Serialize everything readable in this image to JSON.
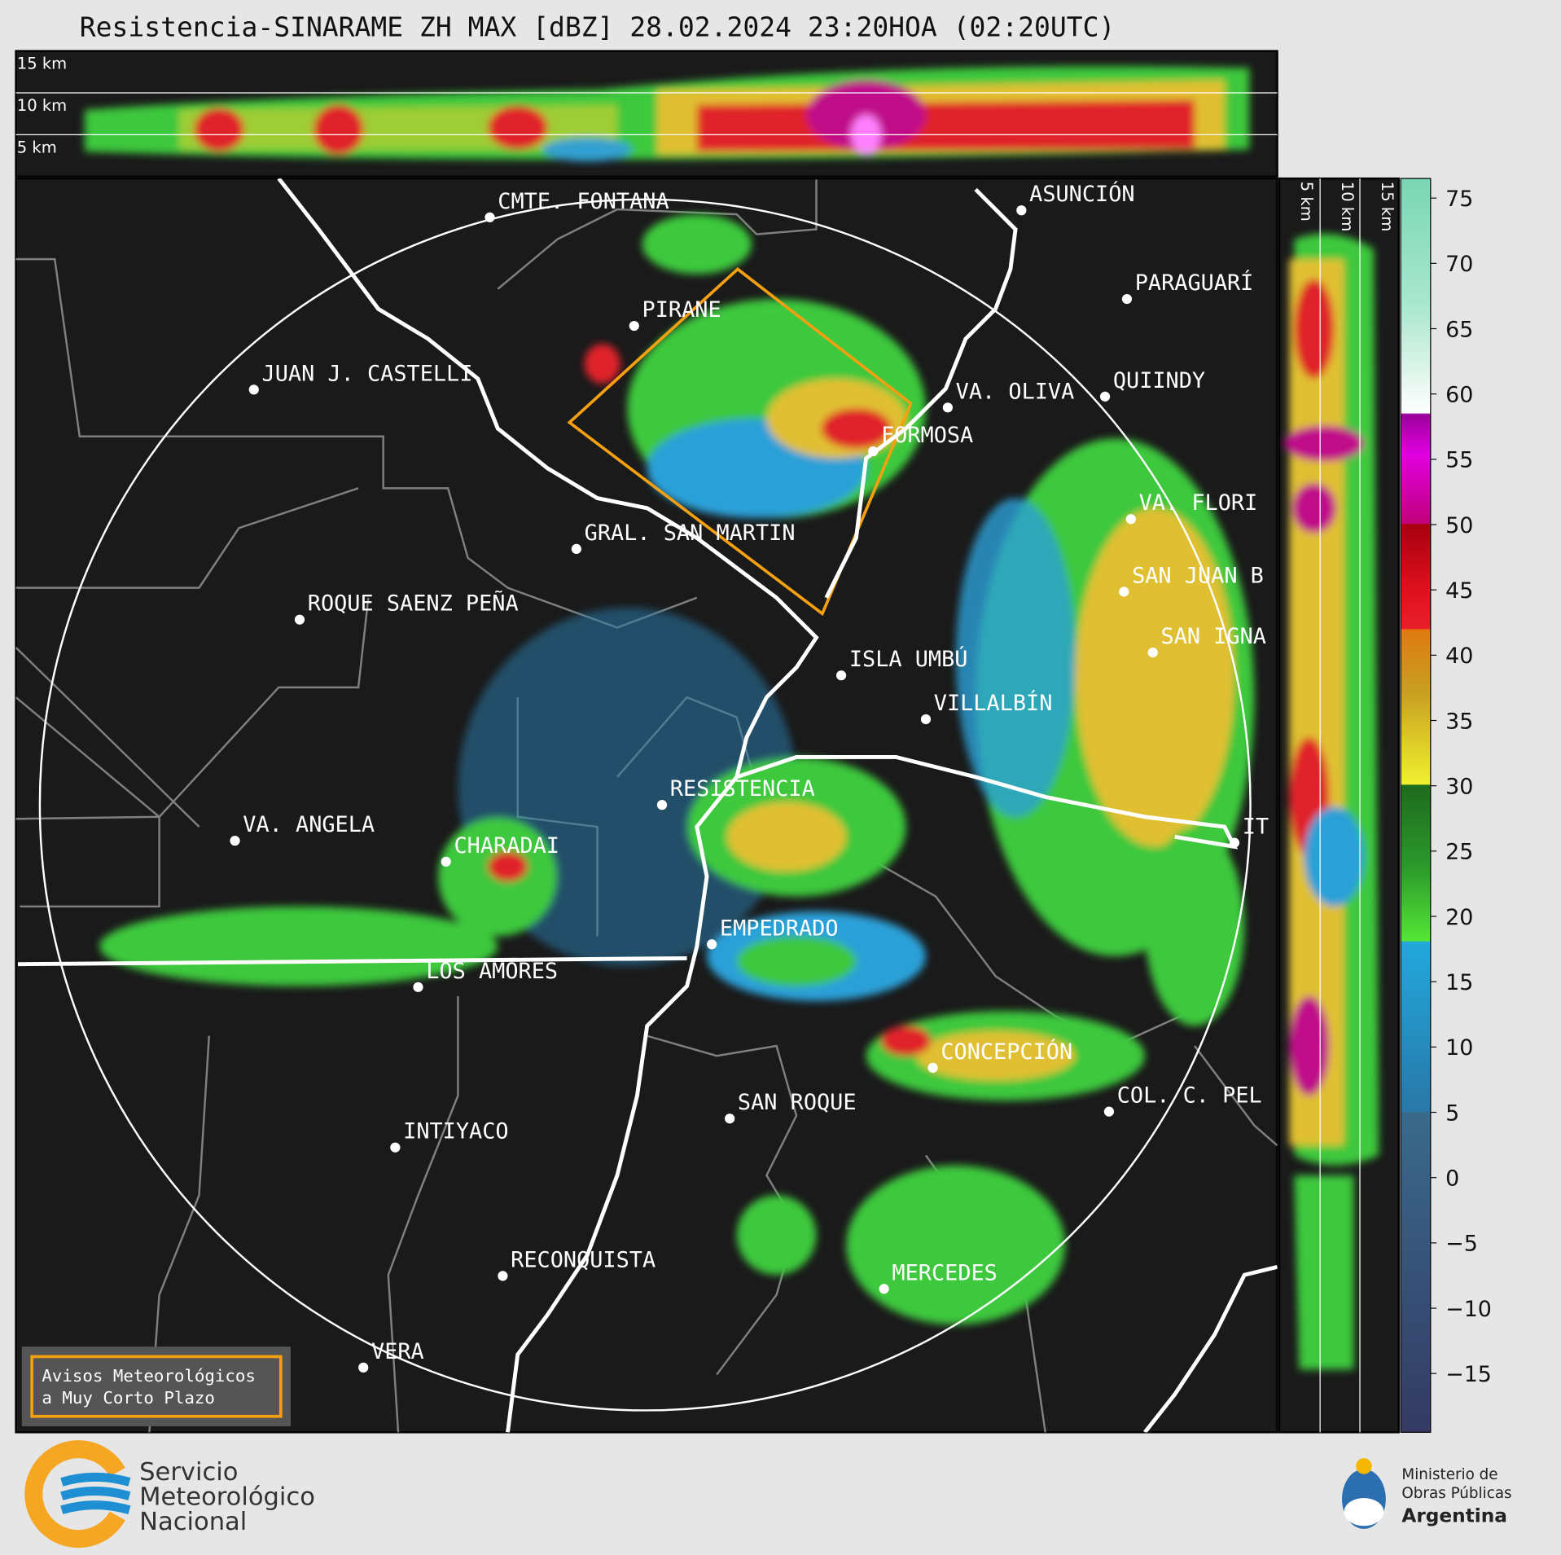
{
  "title": "Resistencia-SINARAME ZH MAX [dBZ] 28.02.2024 23:20HOA (02:20UTC)",
  "top_panel": {
    "height_labels": [
      "15 km",
      "10 km",
      "5 km"
    ]
  },
  "side_panel": {
    "height_labels": [
      "5 km",
      "10 km",
      "15 km"
    ]
  },
  "map": {
    "cities": [
      "CMTE. FONTANA",
      "ASUNCIÓN",
      "PARAGUARÍ",
      "PIRANE",
      "JUAN J. CASTELLI",
      "VA. OLIVA",
      "QUIINDY",
      "FORMOSA",
      "VA. FLORI",
      "GRAL. SAN MARTIN",
      "SAN JUAN B",
      "ROQUE SAENZ PEÑA",
      "SAN IGNA",
      "ISLA UMBÚ",
      "VILLALBÍN",
      "RESISTENCIA",
      "IT",
      "VA. ANGELA",
      "CHARADAI",
      "EMPEDRADO",
      "LOS AMORES",
      "CONCEPCIÓN",
      "SAN ROQUE",
      "COL. C. PEL",
      "INTIYACO",
      "RECONQUISTA",
      "MERCEDES",
      "VERA"
    ]
  },
  "colorbar": {
    "ylim": [
      -19.5,
      76.5
    ],
    "ticks": [
      75,
      70,
      65,
      60,
      55,
      50,
      45,
      40,
      35,
      30,
      25,
      20,
      15,
      10,
      5,
      0,
      {
        "value": -5,
        "label": "−5"
      },
      {
        "value": -10,
        "label": "−10"
      },
      {
        "value": -15,
        "label": "−15"
      }
    ]
  },
  "warning": {
    "lines": [
      "Avisos Meteorológicos",
      "a Muy Corto Plazo"
    ]
  },
  "footer": {
    "smn": [
      "Servicio",
      "Meteorológico",
      "Nacional"
    ],
    "ministry": [
      "Ministerio de",
      "Obras Públicas",
      "Argentina"
    ]
  }
}
